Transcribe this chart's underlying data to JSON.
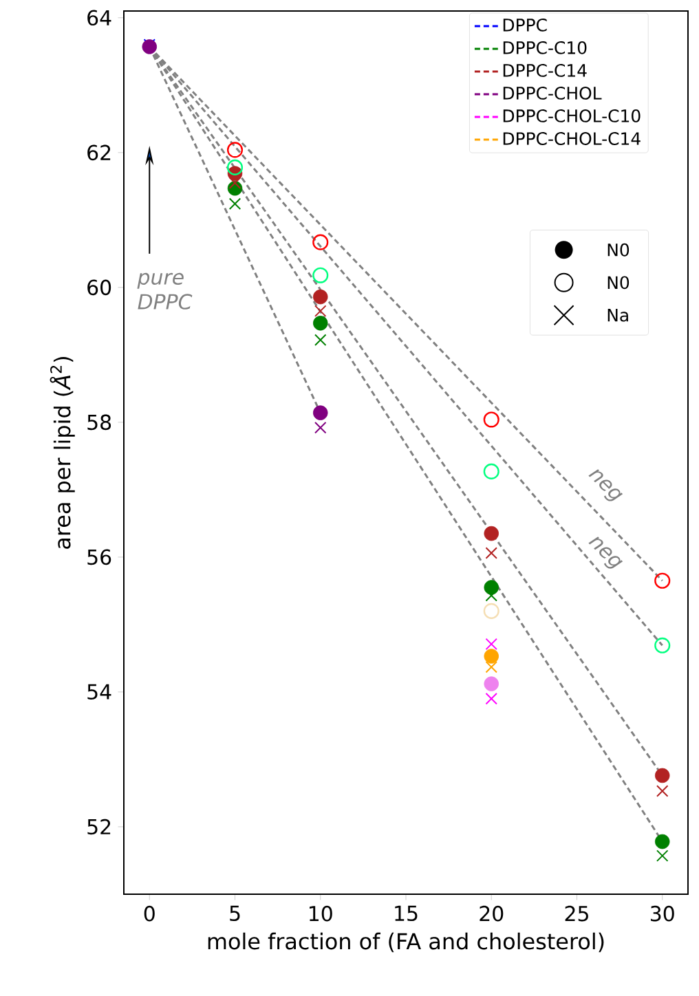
{
  "chart_data": {
    "type": "scatter",
    "xlabel": "mole fraction of (FA and cholesterol)",
    "ylabel": "area per lipid (*Å*$^{2}$)",
    "xlim": [
      -1.5,
      31.5
    ],
    "ylim": [
      51.0,
      64.1
    ],
    "xticks": [
      0,
      5,
      10,
      15,
      20,
      25,
      30
    ],
    "yticks": [
      52,
      54,
      56,
      58,
      60,
      62,
      64
    ],
    "grid": false,
    "legend": "top right",
    "annotations": [
      "pure DPPC",
      "neg",
      "neg"
    ],
    "series": [
      {
        "type": "line",
        "x": [
          0,
          30
        ],
        "values": [
          63.57,
          55.65
        ],
        "color": "#808080",
        "line_style": "dashed",
        "marker": "none"
      },
      {
        "type": "line",
        "x": [
          0,
          30
        ],
        "values": [
          63.57,
          54.69
        ],
        "color": "#808080",
        "line_style": "dashed",
        "marker": "none"
      },
      {
        "type": "line",
        "x": [
          0,
          30
        ],
        "values": [
          63.57,
          52.76
        ],
        "color": "#808080",
        "line_style": "dashed",
        "marker": "none"
      },
      {
        "type": "line",
        "x": [
          0,
          30
        ],
        "values": [
          63.57,
          51.78
        ],
        "color": "#808080",
        "line_style": "dashed",
        "marker": "none"
      },
      {
        "type": "line",
        "x": [
          0,
          10
        ],
        "values": [
          63.57,
          58.14
        ],
        "color": "#808080",
        "line_style": "dashed",
        "marker": "none"
      },
      {
        "type": "scatter",
        "x": [
          0
        ],
        "values": [
          63.6
        ],
        "color": "#0000ff",
        "marker": "cross"
      },
      {
        "type": "scatter",
        "x": [
          5,
          10,
          20,
          30
        ],
        "values": [
          61.47,
          59.47,
          55.55,
          51.78
        ],
        "color": "#008000",
        "marker": "circle"
      },
      {
        "type": "scatter",
        "x": [
          5,
          10,
          20,
          30
        ],
        "values": [
          61.24,
          59.22,
          55.43,
          51.57
        ],
        "color": "#008000",
        "marker": "cross"
      },
      {
        "type": "scatter",
        "x": [
          5,
          10,
          20,
          30
        ],
        "values": [
          61.69,
          59.86,
          56.35,
          52.76
        ],
        "color": "#b22222",
        "marker": "circle"
      },
      {
        "type": "scatter",
        "x": [
          5,
          10,
          20,
          30
        ],
        "values": [
          61.55,
          59.65,
          56.06,
          52.53
        ],
        "color": "#b22222",
        "marker": "cross"
      },
      {
        "type": "scatter",
        "x": [
          0,
          10
        ],
        "values": [
          63.57,
          58.14
        ],
        "color": "#800080",
        "marker": "circle"
      },
      {
        "type": "scatter",
        "x": [
          10
        ],
        "values": [
          57.92
        ],
        "color": "#800080",
        "marker": "cross"
      },
      {
        "type": "scatter",
        "x": [
          5,
          10,
          20,
          30
        ],
        "values": [
          62.04,
          60.67,
          58.04,
          55.65
        ],
        "color": "#ff0000",
        "marker": "circle_open"
      },
      {
        "type": "scatter",
        "x": [
          5,
          10,
          20,
          30
        ],
        "values": [
          61.78,
          60.18,
          57.27,
          54.69
        ],
        "color": "#00ff7f",
        "marker": "circle_open"
      },
      {
        "type": "scatter",
        "x": [
          20
        ],
        "values": [
          55.2
        ],
        "color": "#f5deb3",
        "marker": "circle_open"
      },
      {
        "type": "scatter",
        "x": [
          20,
          20
        ],
        "values": [
          54.71,
          53.9
        ],
        "color": "#ff00ff",
        "marker": "cross"
      },
      {
        "type": "scatter",
        "x": [
          20
        ],
        "values": [
          54.53
        ],
        "color": "#ffa500",
        "marker": "circle"
      },
      {
        "type": "scatter",
        "x": [
          20
        ],
        "values": [
          54.37
        ],
        "color": "#ffa500",
        "marker": "cross"
      },
      {
        "type": "scatter",
        "x": [
          20
        ],
        "values": [
          54.12
        ],
        "color": "#ee82ee",
        "marker": "circle"
      },
      {
        "type": "line",
        "name": "DPPC",
        "color": "#0000ff",
        "line_style": "dashed"
      },
      {
        "type": "line",
        "name": "DPPC-C10",
        "color": "#008000",
        "line_style": "dashed"
      },
      {
        "type": "line",
        "name": "DPPC-C14",
        "color": "#b22222",
        "line_style": "dashed"
      },
      {
        "type": "line",
        "name": "DPPC-CHOL",
        "color": "#800080",
        "line_style": "dashed"
      },
      {
        "type": "line",
        "name": "DPPC-CHOL-C10",
        "color": "#ff00ff",
        "line_style": "dashed"
      },
      {
        "type": "line",
        "name": "DPPC-CHOL-C14",
        "color": "#ffa500",
        "line_style": "dashed"
      },
      {
        "name": "N0",
        "color": "#000000",
        "marker": "circle"
      },
      {
        "name": "N0",
        "color": "#000000",
        "marker": "circle_open"
      },
      {
        "name": "Na",
        "color": "#000000",
        "marker": "cross"
      }
    ]
  }
}
